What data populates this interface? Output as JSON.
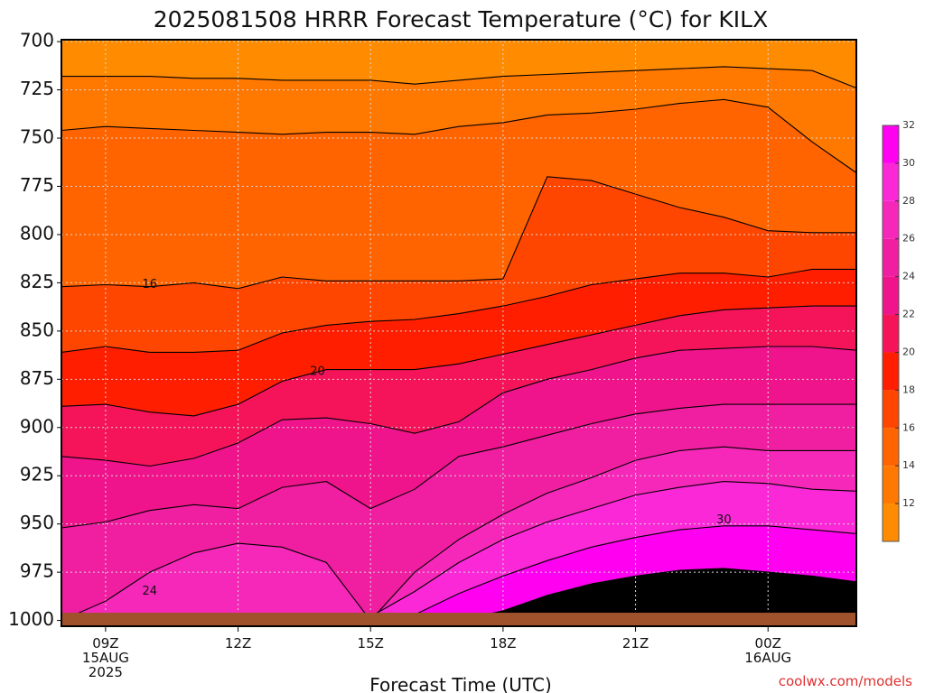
{
  "chart_data": {
    "type": "contour",
    "title": "2025081508 HRRR Forecast Temperature (°C) for KILX",
    "xlabel": "Forecast Time (UTC)",
    "ylabel": "",
    "x_hours": [
      8,
      9,
      10,
      11,
      12,
      13,
      14,
      15,
      16,
      17,
      18,
      19,
      20,
      21,
      22,
      23,
      24,
      25,
      26
    ],
    "xlim": [
      8,
      26
    ],
    "x_ticks": [
      {
        "hour": 9,
        "lines": [
          "09Z",
          "15AUG",
          "2025"
        ]
      },
      {
        "hour": 12,
        "lines": [
          "12Z"
        ]
      },
      {
        "hour": 15,
        "lines": [
          "15Z"
        ]
      },
      {
        "hour": 18,
        "lines": [
          "18Z"
        ]
      },
      {
        "hour": 21,
        "lines": [
          "21Z"
        ]
      },
      {
        "hour": 24,
        "lines": [
          "00Z",
          "16AUG"
        ]
      }
    ],
    "y_reversed": true,
    "ylim": [
      1003,
      699
    ],
    "y_ticks": [
      700,
      725,
      750,
      775,
      800,
      825,
      850,
      875,
      900,
      925,
      950,
      975,
      1000
    ],
    "grid": true,
    "ground_level_hPa": 996,
    "contour_levels": [
      12,
      14,
      16,
      18,
      20,
      22,
      24,
      26,
      28,
      30,
      32
    ],
    "isotherms": [
      {
        "level": 12,
        "p": [
          718,
          718,
          718,
          719,
          719,
          720,
          720,
          720,
          722,
          720,
          718,
          717,
          716,
          715,
          714,
          713,
          714,
          715,
          724
        ]
      },
      {
        "level": 14,
        "p": [
          746,
          744,
          745,
          746,
          747,
          748,
          747,
          747,
          748,
          744,
          742,
          738,
          737,
          735,
          732,
          730,
          734,
          752,
          768
        ]
      },
      {
        "level": 16,
        "p": [
          827,
          826,
          827,
          825,
          828,
          822,
          824,
          824,
          824,
          824,
          823,
          770,
          772,
          779,
          786,
          791,
          798,
          799,
          799
        ]
      },
      {
        "level": 18,
        "p": [
          861,
          858,
          861,
          861,
          860,
          851,
          847,
          845,
          844,
          841,
          837,
          832,
          826,
          823,
          820,
          820,
          822,
          818,
          818
        ]
      },
      {
        "level": 20,
        "p": [
          889,
          888,
          892,
          894,
          888,
          876,
          870,
          870,
          870,
          867,
          862,
          857,
          852,
          847,
          842,
          839,
          838,
          837,
          837
        ]
      },
      {
        "level": 22,
        "p": [
          915,
          917,
          920,
          916,
          908,
          896,
          895,
          898,
          903,
          897,
          882,
          875,
          870,
          864,
          860,
          859,
          858,
          858,
          860
        ]
      },
      {
        "level": 24,
        "p": [
          952,
          949,
          943,
          940,
          942,
          931,
          928,
          942,
          932,
          915,
          910,
          904,
          898,
          893,
          890,
          888,
          888,
          888,
          888
        ]
      },
      {
        "level": 26,
        "p": [
          1000,
          990,
          975,
          965,
          960,
          962,
          970,
          1000,
          975,
          958,
          945,
          934,
          926,
          917,
          912,
          910,
          912,
          912,
          912
        ]
      },
      {
        "level": 28,
        "p": [
          1000,
          1000,
          1000,
          1000,
          1000,
          1000,
          1000,
          998,
          985,
          970,
          958,
          949,
          942,
          935,
          931,
          928,
          929,
          932,
          933
        ]
      },
      {
        "level": 30,
        "p": [
          1000,
          1000,
          1000,
          1000,
          1000,
          1000,
          1000,
          1000,
          997,
          986,
          977,
          969,
          962,
          957,
          953,
          951,
          951,
          953,
          955
        ]
      },
      {
        "level": 32,
        "p": [
          1000,
          1000,
          1000,
          1000,
          1000,
          1000,
          1000,
          1000,
          1000,
          1000,
          995,
          987,
          981,
          977,
          974,
          973,
          975,
          977,
          980
        ]
      }
    ],
    "contour_labels": [
      {
        "text": "16",
        "hour": 10.0,
        "p": 826
      },
      {
        "text": "20",
        "hour": 13.8,
        "p": 871
      },
      {
        "text": "24",
        "hour": 10.0,
        "p": 985
      },
      {
        "text": "30",
        "hour": 23.0,
        "p": 948
      }
    ],
    "colors": {
      "10-12": "#ff8c00",
      "12-14": "#ff7800",
      "14-16": "#ff6400",
      "16-18": "#ff4600",
      "18-20": "#ff1e00",
      "20-22": "#f5145a",
      "22-24": "#f0148c",
      "24-26": "#f01ea0",
      "26-28": "#f528b9",
      "28-30": "#fa28d7",
      "30-32": "#ff00f0",
      "ground": "#a0522d"
    },
    "legend": {
      "placement": "right",
      "levels": [
        12,
        14,
        16,
        18,
        20,
        22,
        24,
        26,
        28,
        30,
        32
      ]
    }
  },
  "credit": "coolwx.com/models"
}
